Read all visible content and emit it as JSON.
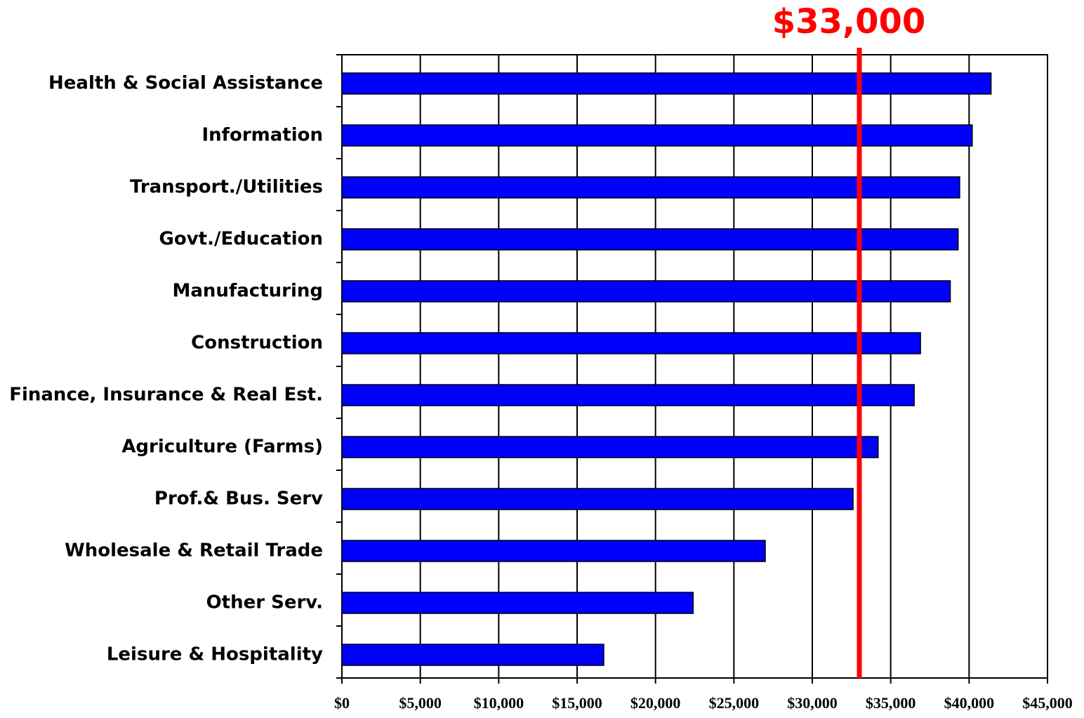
{
  "chart_data": {
    "type": "barh",
    "categories": [
      "Health & Social Assistance",
      "Information",
      "Transport./Utilities",
      "Govt./Education",
      "Manufacturing",
      "Construction",
      "Finance, Insurance & Real Est.",
      "Agriculture (Farms)",
      "Prof.& Bus. Serv",
      "Wholesale & Retail Trade",
      "Other Serv.",
      "Leisure & Hospitality"
    ],
    "values": [
      41400,
      40200,
      39400,
      39300,
      38800,
      36900,
      36500,
      34200,
      32600,
      27000,
      22400,
      16700
    ],
    "color": "#0000ff",
    "xlim": [
      0,
      45000
    ],
    "xticks": [
      {
        "value": 0,
        "label": "$0"
      },
      {
        "value": 5000,
        "label": "$5,000"
      },
      {
        "value": 10000,
        "label": "$10,000"
      },
      {
        "value": 15000,
        "label": "$15,000"
      },
      {
        "value": 20000,
        "label": "$20,000"
      },
      {
        "value": 25000,
        "label": "$25,000"
      },
      {
        "value": 30000,
        "label": "$30,000"
      },
      {
        "value": 35000,
        "label": "$35,000"
      },
      {
        "value": 40000,
        "label": "$40,000"
      },
      {
        "value": 45000,
        "label": "$45,000"
      }
    ],
    "grid": true,
    "reference_line": {
      "value": 33000,
      "label": "$33,000",
      "color": "#ff0000"
    }
  }
}
